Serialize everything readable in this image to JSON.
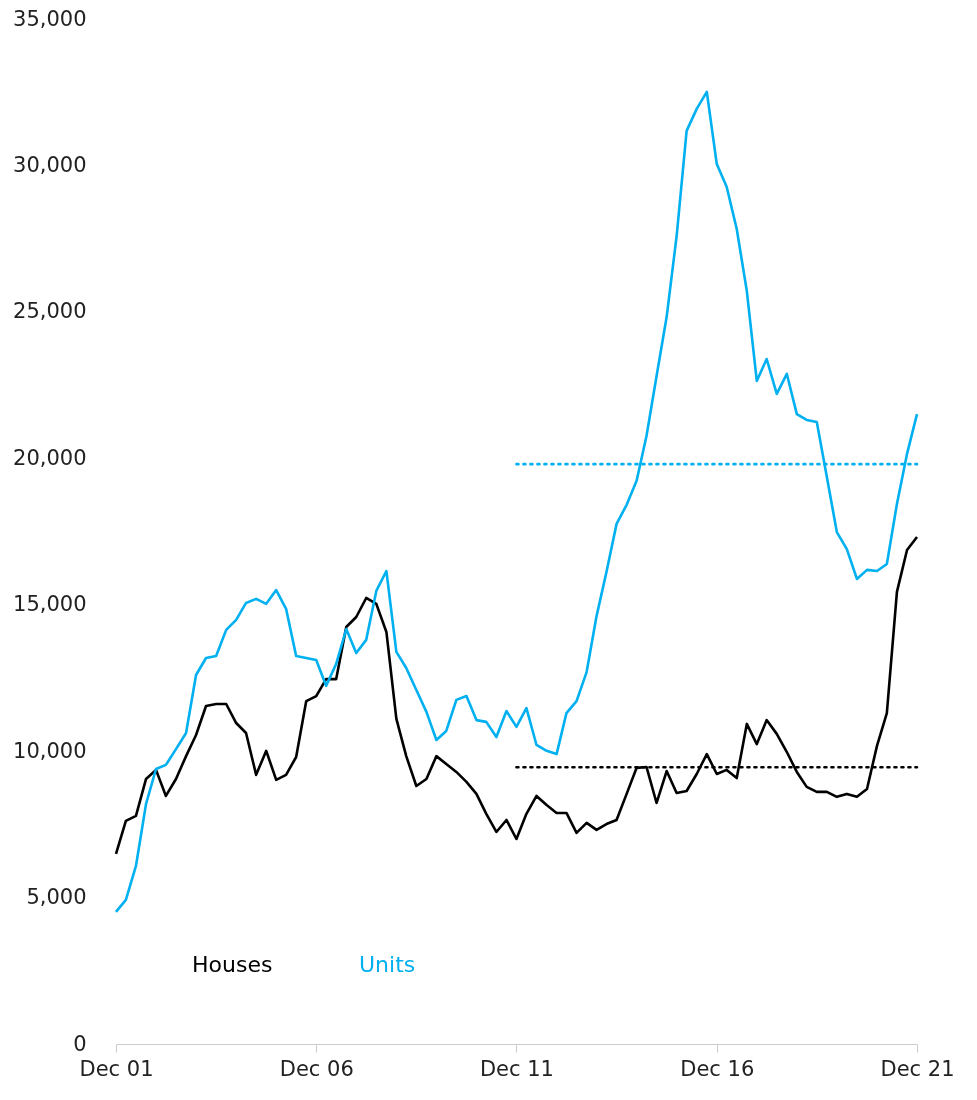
{
  "chart_data": {
    "type": "line",
    "x": [
      "2001-12",
      "2002-03",
      "2002-06",
      "2002-09",
      "2002-12",
      "2003-03",
      "2003-06",
      "2003-09",
      "2003-12",
      "2004-03",
      "2004-06",
      "2004-09",
      "2004-12",
      "2005-03",
      "2005-06",
      "2005-09",
      "2005-12",
      "2006-03",
      "2006-06",
      "2006-09",
      "2006-12",
      "2007-03",
      "2007-06",
      "2007-09",
      "2007-12",
      "2008-03",
      "2008-06",
      "2008-09",
      "2008-12",
      "2009-03",
      "2009-06",
      "2009-09",
      "2009-12",
      "2010-03",
      "2010-06",
      "2010-09",
      "2010-12",
      "2011-03",
      "2011-06",
      "2011-09",
      "2011-12",
      "2012-03",
      "2012-06",
      "2012-09",
      "2012-12",
      "2013-03",
      "2013-06",
      "2013-09",
      "2013-12",
      "2014-03",
      "2014-06",
      "2014-09",
      "2014-12",
      "2015-03",
      "2015-06",
      "2015-09",
      "2015-12",
      "2016-03",
      "2016-06",
      "2016-09",
      "2016-12",
      "2017-03",
      "2017-06",
      "2017-09",
      "2017-12",
      "2018-03",
      "2018-06",
      "2018-09",
      "2018-12",
      "2019-03",
      "2019-06",
      "2019-09",
      "2019-12",
      "2020-03",
      "2020-06",
      "2020-09",
      "2020-12",
      "2021-03",
      "2021-06",
      "2021-09",
      "2021-12"
    ],
    "series": [
      {
        "name": "Houses",
        "color": "#000000",
        "values": [
          6490,
          7620,
          7790,
          9050,
          9360,
          8470,
          9050,
          9830,
          10550,
          11540,
          11610,
          11610,
          10960,
          10620,
          9190,
          10010,
          9020,
          9190,
          9800,
          11710,
          11880,
          12460,
          12460,
          14240,
          14580,
          15230,
          15030,
          14070,
          11100,
          9830,
          8810,
          9050,
          9830,
          9560,
          9290,
          8950,
          8540,
          7860,
          7240,
          7650,
          7000,
          7860,
          8470,
          8160,
          7890,
          7890,
          7210,
          7550,
          7310,
          7510,
          7650,
          8540,
          9430,
          9460,
          8230,
          9320,
          8570,
          8640,
          9220,
          9900,
          9220,
          9360,
          9080,
          10930,
          10240,
          11060,
          10590,
          9970,
          9290,
          8780,
          8610,
          8610,
          8440,
          8540,
          8440,
          8710,
          10180,
          11300,
          15440,
          16870,
          17310
        ]
      },
      {
        "name": "Units",
        "color": "#00b0f0",
        "values": [
          4510,
          4920,
          6080,
          8200,
          9390,
          9530,
          10070,
          10620,
          12600,
          13180,
          13250,
          14140,
          14480,
          15060,
          15200,
          15030,
          15500,
          14860,
          13250,
          13180,
          13110,
          12230,
          12980,
          14170,
          13350,
          13800,
          15470,
          16150,
          13390,
          12840,
          12090,
          11340,
          10380,
          10690,
          11750,
          11880,
          11060,
          11000,
          10480,
          11370,
          10830,
          11470,
          10210,
          10010,
          9900,
          11300,
          11710,
          12700,
          14620,
          16120,
          17760,
          18410,
          19230,
          20760,
          22810,
          24830,
          27590,
          31180,
          31930,
          32510,
          30050,
          29270,
          27830,
          25710,
          22640,
          23390,
          22200,
          22880,
          21510,
          21310,
          21240,
          19360,
          17480,
          16900,
          15880,
          16190,
          16150,
          16390,
          18440,
          20150,
          21510
        ]
      },
      {
        "type": "line",
        "color": "#00b0f0",
        "line_style": "dotted",
        "x": [
          "2011-12",
          "2021-12"
        ],
        "values": [
          19800,
          19800
        ]
      },
      {
        "type": "line",
        "color": "#000000",
        "line_style": "dotted",
        "x": [
          "2011-12",
          "2021-12"
        ],
        "values": [
          9450,
          9450
        ]
      }
    ],
    "xlim": [
      "2001-12",
      "2021-12"
    ],
    "xticks": [
      {
        "value": "2001-12",
        "label": "Dec 01"
      },
      {
        "value": "2006-12",
        "label": "Dec 06"
      },
      {
        "value": "2011-12",
        "label": "Dec 11"
      },
      {
        "value": "2016-12",
        "label": "Dec 16"
      },
      {
        "value": "2021-12",
        "label": "Dec 21"
      }
    ],
    "ylim": [
      0,
      35000
    ],
    "yticks": [
      {
        "value": 0,
        "label": "0"
      },
      {
        "value": 5000,
        "label": "5,000"
      },
      {
        "value": 10000,
        "label": "10,000"
      },
      {
        "value": 15000,
        "label": "15,000"
      },
      {
        "value": 20000,
        "label": "20,000"
      },
      {
        "value": 25000,
        "label": "25,000"
      },
      {
        "value": 30000,
        "label": "30,000"
      },
      {
        "value": 35000,
        "label": "35,000"
      }
    ],
    "legend": "bottom left",
    "grid": false,
    "line_style": "solid"
  }
}
